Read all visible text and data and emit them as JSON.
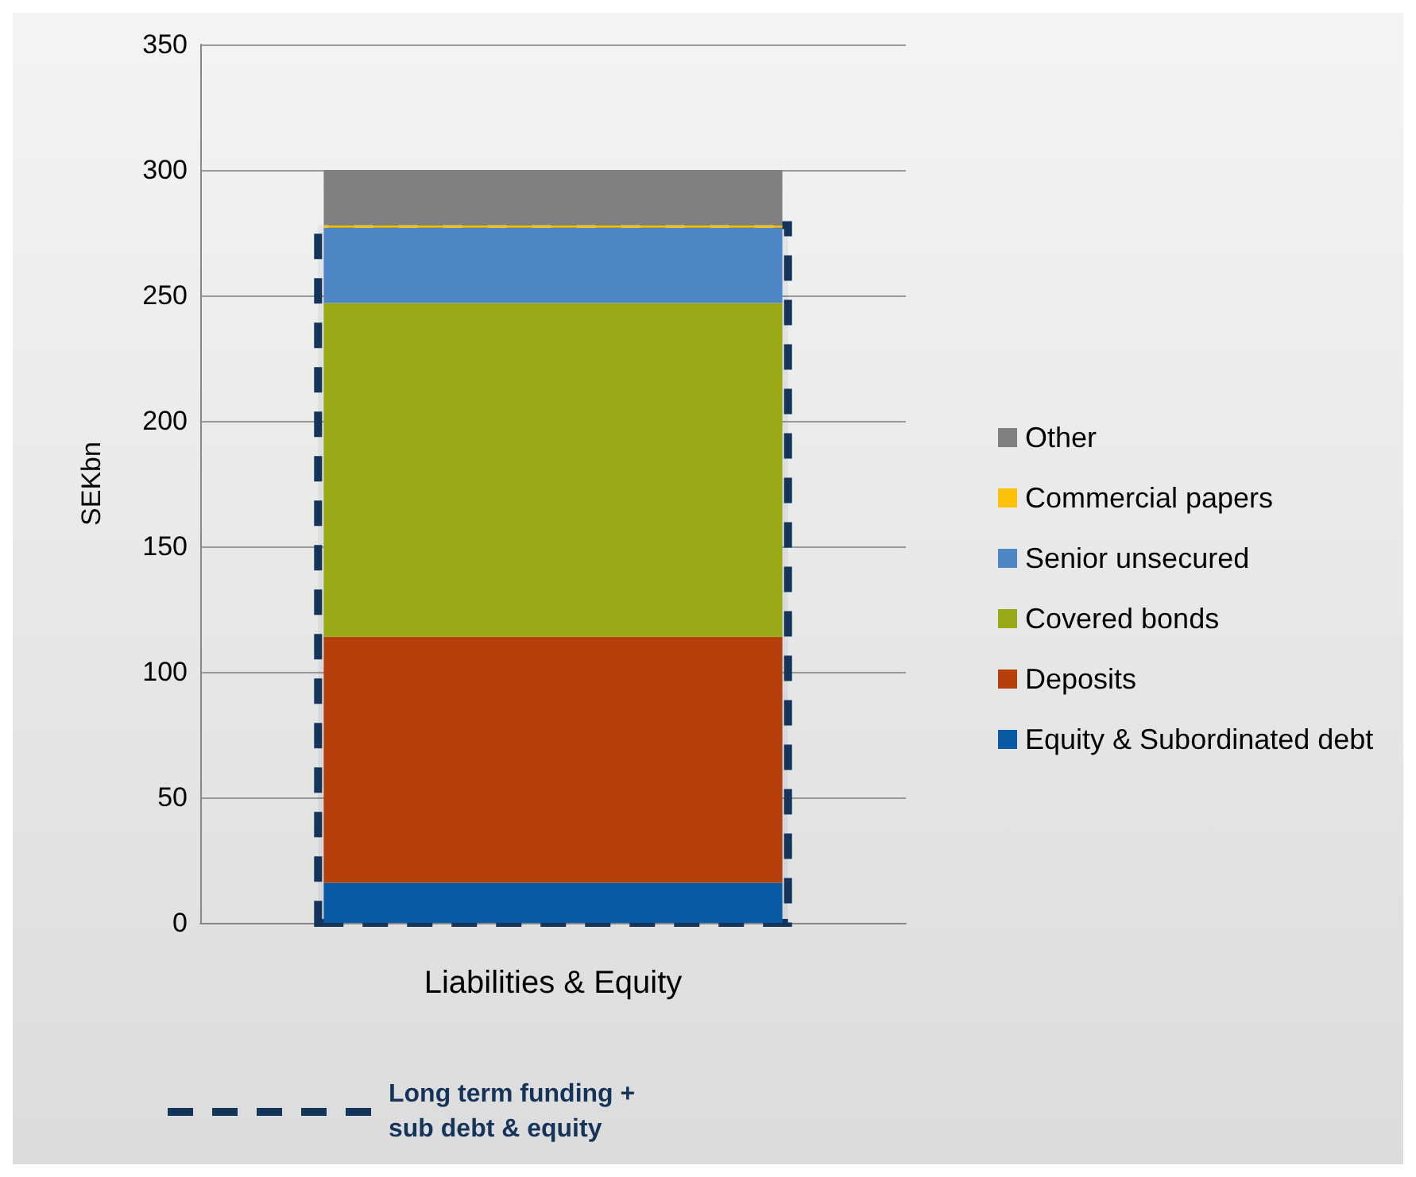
{
  "chart_data": {
    "type": "bar",
    "stacked": true,
    "ylabel": "SEKbn",
    "categories": [
      "Liabilities & Equity"
    ],
    "series": [
      {
        "name": "Equity & Subordinated debt",
        "color": "#0a5aa6",
        "values": [
          16
        ]
      },
      {
        "name": "Deposits",
        "color": "#b5400b",
        "values": [
          98
        ]
      },
      {
        "name": "Covered bonds",
        "color": "#9aa816",
        "values": [
          133
        ]
      },
      {
        "name": "Senior unsecured",
        "color": "#4f86c6",
        "values": [
          30
        ]
      },
      {
        "name": "Commercial papers",
        "color": "#fcc20b",
        "values": [
          1
        ]
      },
      {
        "name": "Other",
        "color": "#808080",
        "values": [
          22
        ]
      }
    ],
    "ylim": [
      0,
      350
    ],
    "yticks": [
      0,
      50,
      100,
      150,
      200,
      250,
      300,
      350
    ],
    "grid": "y",
    "legend": "right",
    "bands": [
      {
        "axis": "y",
        "from": 0,
        "to": 278,
        "label": "Long term funding + sub debt & equity",
        "color": "#14345a"
      }
    ]
  }
}
